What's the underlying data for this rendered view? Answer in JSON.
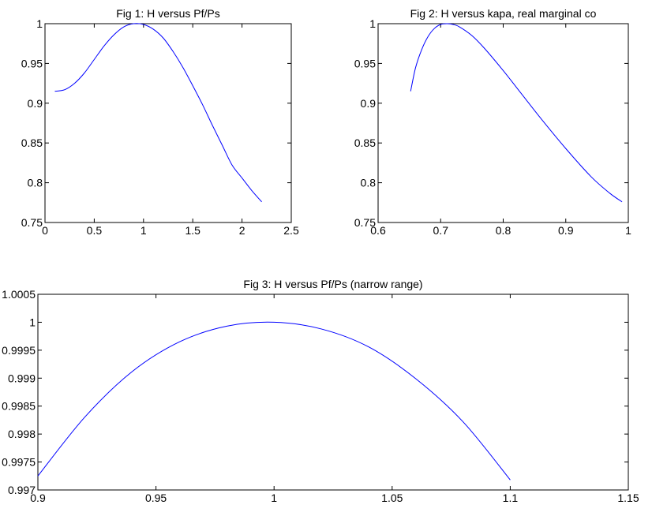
{
  "chart_data": [
    {
      "type": "line",
      "title": "Fig 1: H versus Pf/Ps",
      "xlim": [
        0,
        2.5
      ],
      "ylim": [
        0.75,
        1
      ],
      "xticks": [
        "0",
        "0.5",
        "1",
        "1.5",
        "2",
        "2.5"
      ],
      "yticks": [
        "0.75",
        "0.8",
        "0.85",
        "0.9",
        "0.95",
        "1"
      ],
      "grid": false,
      "series_color": "#0000ff",
      "x": [
        0.1,
        0.2,
        0.3,
        0.4,
        0.5,
        0.6,
        0.7,
        0.8,
        0.9,
        1.0,
        1.1,
        1.2,
        1.3,
        1.4,
        1.5,
        1.6,
        1.7,
        1.8,
        1.9,
        2.0,
        2.1,
        2.2
      ],
      "y": [
        0.915,
        0.917,
        0.925,
        0.938,
        0.955,
        0.972,
        0.986,
        0.996,
        1.0,
        0.999,
        0.993,
        0.982,
        0.965,
        0.945,
        0.922,
        0.898,
        0.872,
        0.847,
        0.822,
        0.806,
        0.79,
        0.776
      ]
    },
    {
      "type": "line",
      "title": "Fig 2: H versus kapa, real marginal co",
      "xlim": [
        0.6,
        1
      ],
      "ylim": [
        0.75,
        1
      ],
      "xticks": [
        "0.6",
        "0.7",
        "0.8",
        "0.9",
        "1"
      ],
      "yticks": [
        "0.75",
        "0.8",
        "0.85",
        "0.9",
        "0.95",
        "1"
      ],
      "grid": false,
      "series_color": "#0000ff",
      "x": [
        0.652,
        0.66,
        0.67,
        0.68,
        0.69,
        0.7,
        0.71,
        0.72,
        0.73,
        0.75,
        0.77,
        0.8,
        0.83,
        0.86,
        0.9,
        0.94,
        0.97,
        0.99
      ],
      "y": [
        0.915,
        0.945,
        0.968,
        0.984,
        0.994,
        0.999,
        1.0,
        0.999,
        0.996,
        0.985,
        0.969,
        0.941,
        0.911,
        0.881,
        0.843,
        0.808,
        0.787,
        0.776
      ]
    },
    {
      "type": "line",
      "title": "Fig 3: H versus Pf/Ps (narrow range)",
      "xlim": [
        0.9,
        1.15
      ],
      "ylim": [
        0.997,
        1.0005
      ],
      "xticks": [
        "0.9",
        "0.95",
        "1",
        "1.05",
        "1.1",
        "1.15"
      ],
      "yticks": [
        "0.997",
        "0.9975",
        "0.998",
        "0.9985",
        "0.999",
        "0.9995",
        "1",
        "1.0005"
      ],
      "grid": false,
      "series_color": "#0000ff",
      "x": [
        0.9,
        0.92,
        0.94,
        0.96,
        0.98,
        1.0,
        1.02,
        1.04,
        1.06,
        1.08,
        1.1
      ],
      "y": [
        0.99725,
        0.99831,
        0.99912,
        0.99965,
        0.99993,
        1.0,
        0.99988,
        0.99956,
        0.99899,
        0.99822,
        0.99718
      ]
    }
  ]
}
